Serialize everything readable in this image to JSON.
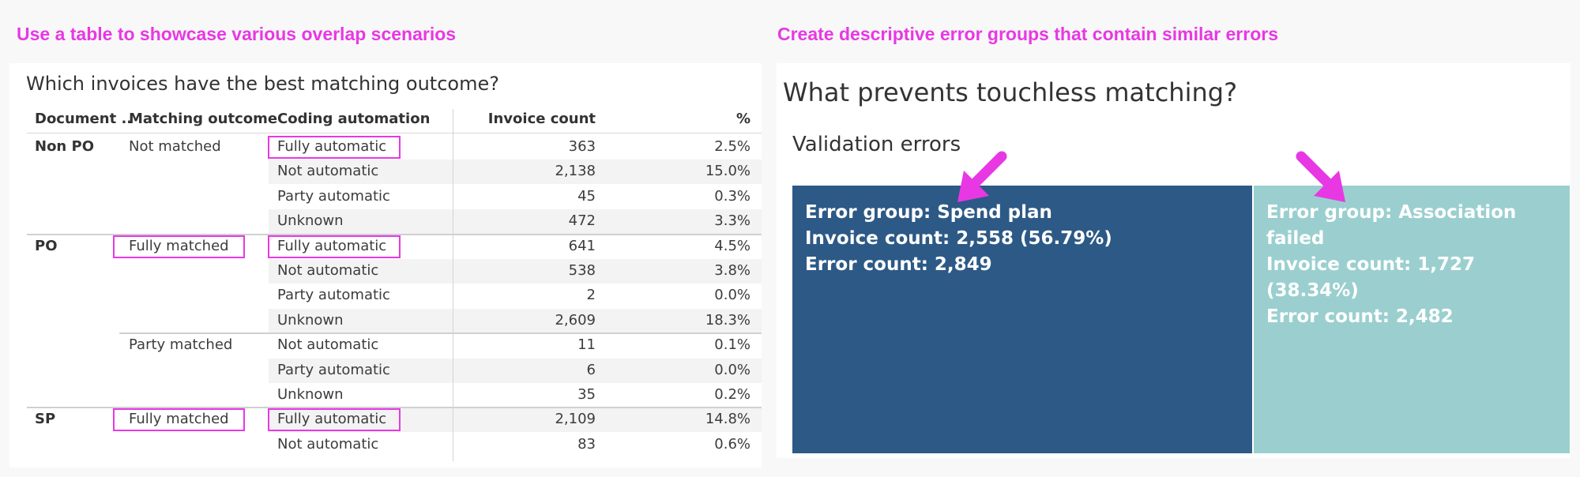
{
  "captions": {
    "left": "Use a table to showcase various overlap scenarios",
    "right": "Create descriptive error groups that contain similar errors"
  },
  "table": {
    "title": "Which invoices have the best matching outcome?",
    "headers": {
      "document": "Document ..",
      "matching": "Matching outcome",
      "coding": "Coding automation",
      "count": "Invoice count",
      "pct": "%"
    },
    "rows": [
      {
        "doc": "Non PO",
        "match": "Not matched",
        "coding": "Fully automatic",
        "count": "363",
        "pct": "2.5%"
      },
      {
        "doc": "",
        "match": "",
        "coding": "Not automatic",
        "count": "2,138",
        "pct": "15.0%"
      },
      {
        "doc": "",
        "match": "",
        "coding": "Party automatic",
        "count": "45",
        "pct": "0.3%"
      },
      {
        "doc": "",
        "match": "",
        "coding": "Unknown",
        "count": "472",
        "pct": "3.3%"
      },
      {
        "doc": "PO",
        "match": "Fully matched",
        "coding": "Fully automatic",
        "count": "641",
        "pct": "4.5%"
      },
      {
        "doc": "",
        "match": "",
        "coding": "Not automatic",
        "count": "538",
        "pct": "3.8%"
      },
      {
        "doc": "",
        "match": "",
        "coding": "Party automatic",
        "count": "2",
        "pct": "0.0%"
      },
      {
        "doc": "",
        "match": "",
        "coding": "Unknown",
        "count": "2,609",
        "pct": "18.3%"
      },
      {
        "doc": "",
        "match": "Party matched",
        "coding": "Not automatic",
        "count": "11",
        "pct": "0.1%"
      },
      {
        "doc": "",
        "match": "",
        "coding": "Party automatic",
        "count": "6",
        "pct": "0.0%"
      },
      {
        "doc": "",
        "match": "",
        "coding": "Unknown",
        "count": "35",
        "pct": "0.2%"
      },
      {
        "doc": "SP",
        "match": "Fully matched",
        "coding": "Fully automatic",
        "count": "2,109",
        "pct": "14.8%"
      },
      {
        "doc": "",
        "match": "",
        "coding": "Not automatic",
        "count": "83",
        "pct": "0.6%"
      }
    ]
  },
  "treemap": {
    "title": "What prevents touchless matching?",
    "subtitle": "Validation errors",
    "colors": {
      "spend": "#2d5986",
      "association": "#9bcfcf",
      "highlight": "#e838e4"
    },
    "groups": [
      {
        "name_line": "Error group: Spend plan",
        "invoice_line": "Invoice count: 2,558 (56.79%)",
        "error_line": "Error count: 2,849",
        "invoice_count": 2558,
        "share_pct": 56.79,
        "error_count": 2849
      },
      {
        "name_line": "Error group: Association failed",
        "invoice_line": "Invoice count: 1,727 (38.34%)",
        "error_line": "Error count: 2,482",
        "invoice_count": 1727,
        "share_pct": 38.34,
        "error_count": 2482
      }
    ]
  }
}
